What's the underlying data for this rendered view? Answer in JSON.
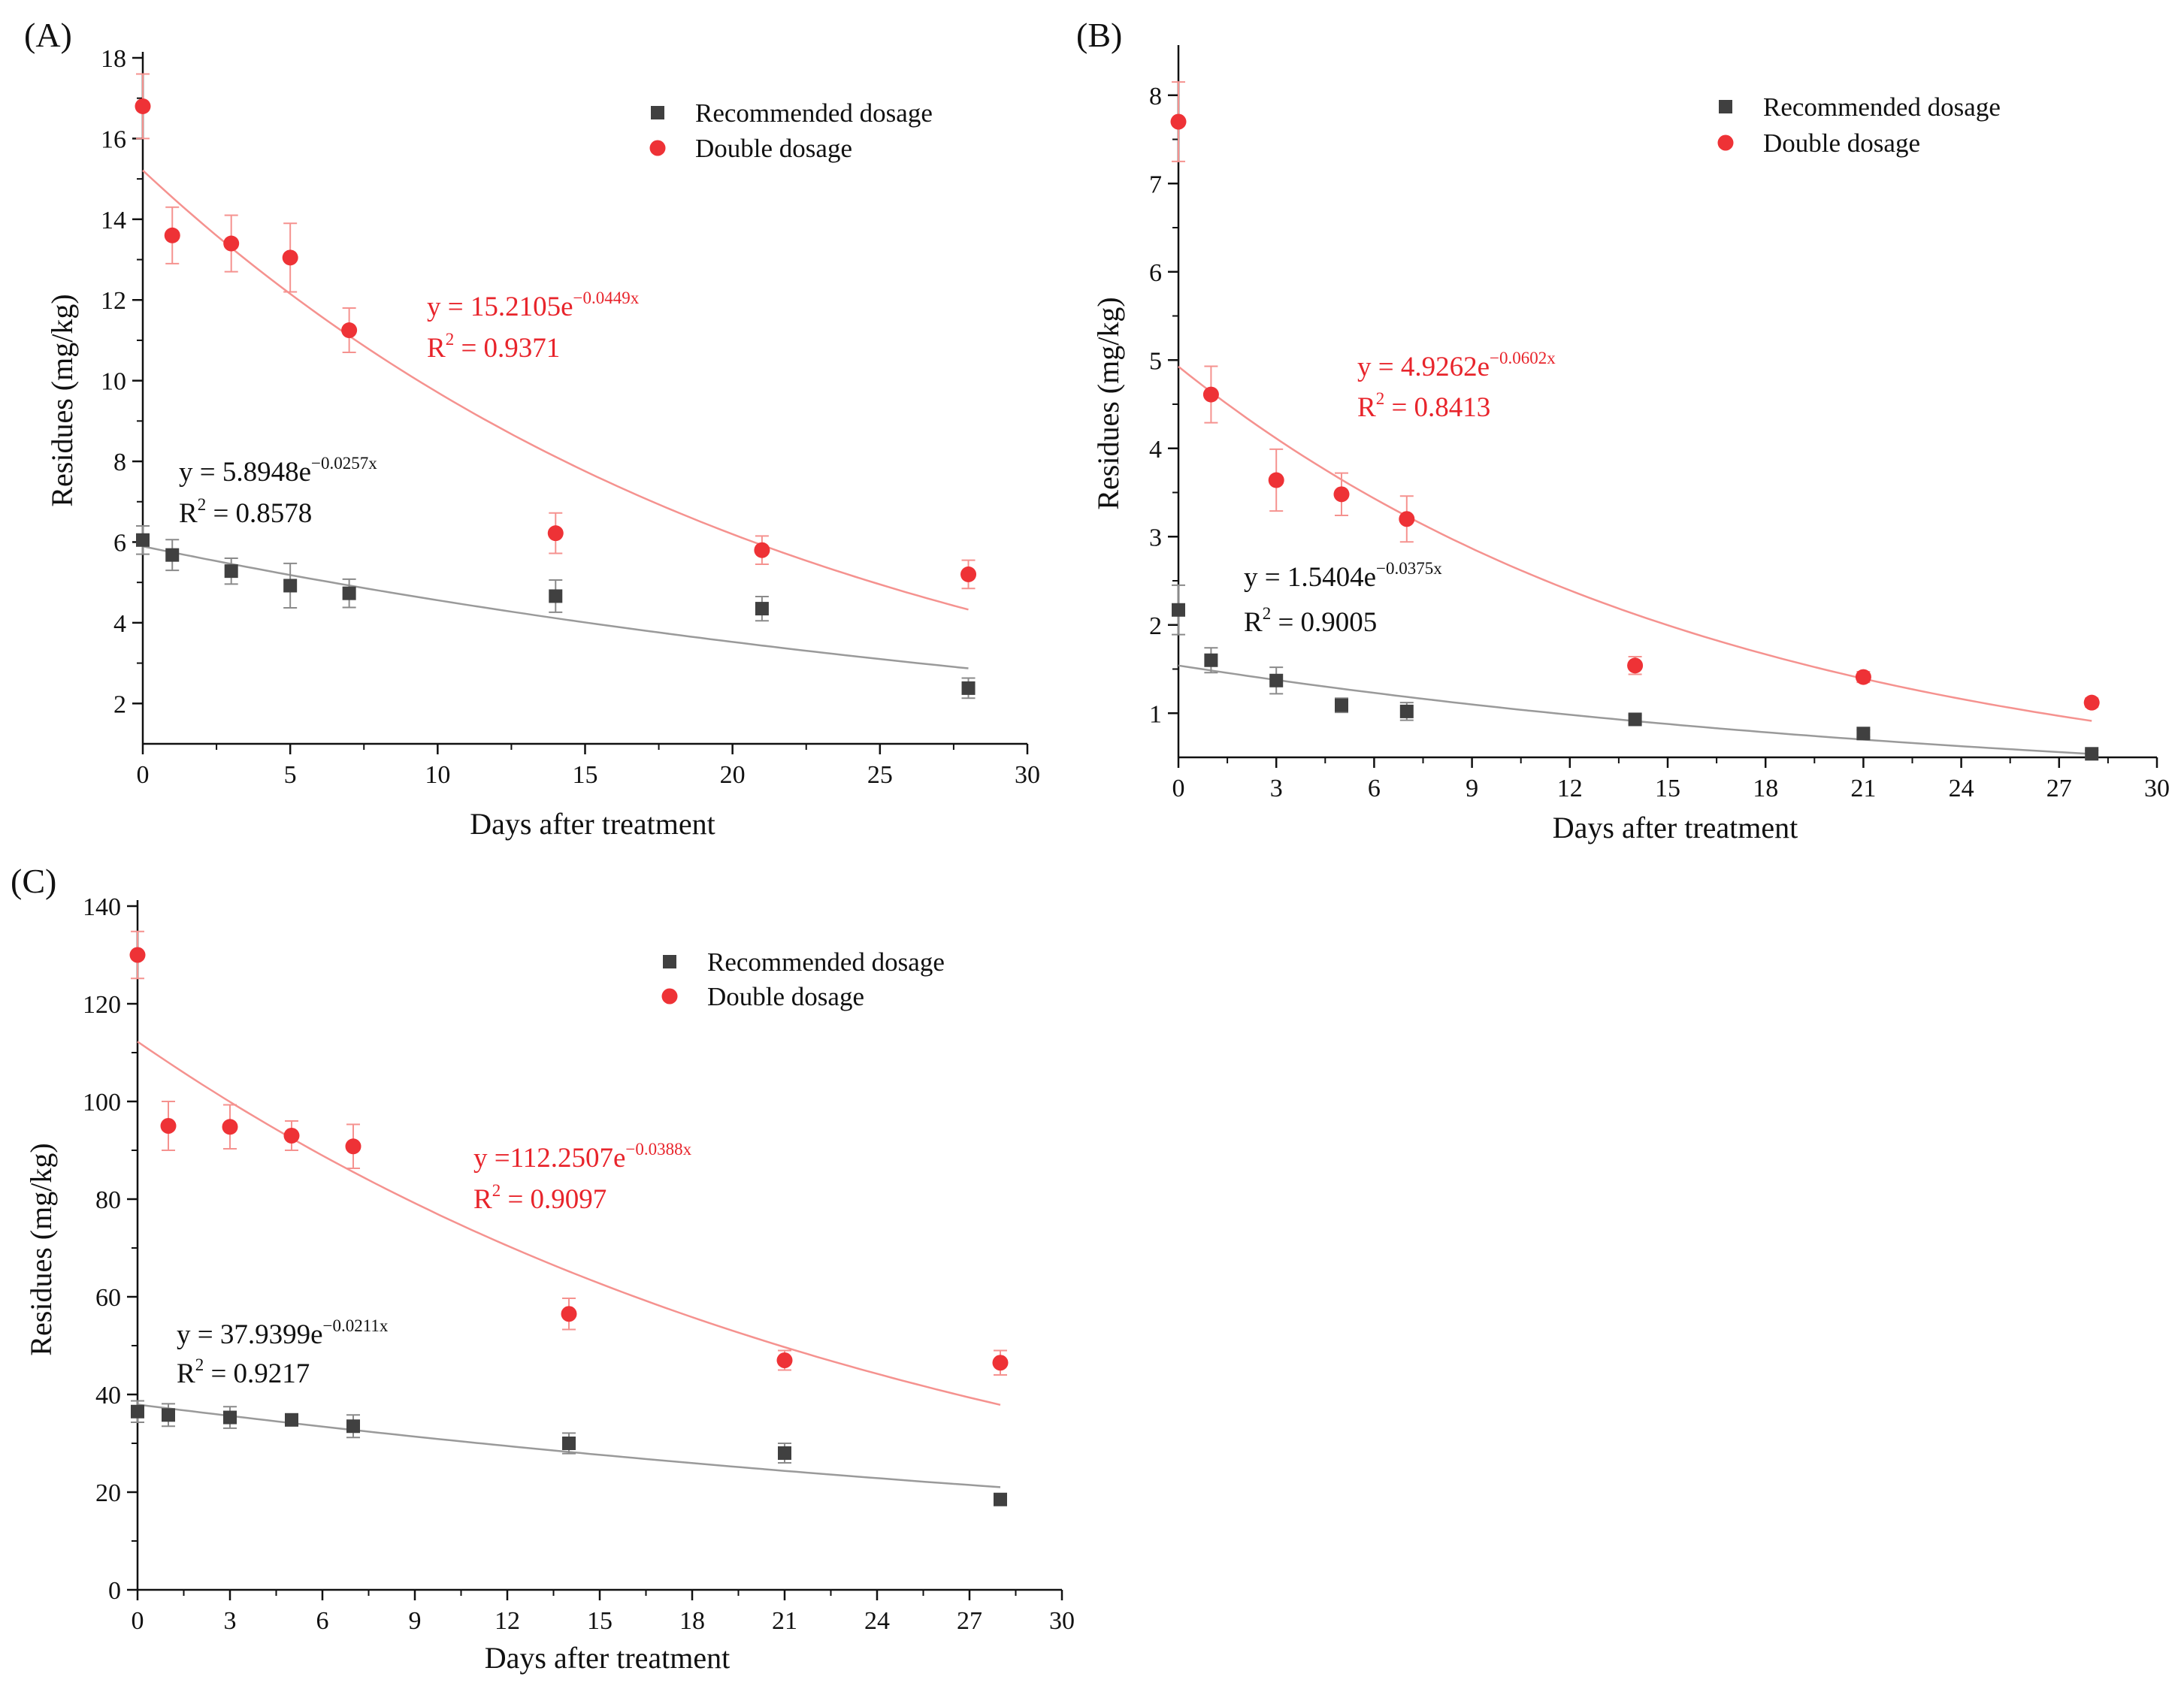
{
  "colors": {
    "rec_marker": "#404040",
    "rec_line": "#9a9a9a",
    "double_marker": "#ee3236",
    "double_line": "#f5928f",
    "double_text": "#e8242b",
    "rec_text": "#111111",
    "axis": "#111111"
  },
  "chart_data": [
    {
      "type": "scatter",
      "panel_label": "(A)",
      "xlabel": "Days after treatment",
      "ylabel": "Residues (mg/kg)",
      "xlim": [
        0,
        30
      ],
      "ylim": [
        1,
        18
      ],
      "xticks": [
        0,
        5,
        10,
        15,
        20,
        25,
        30
      ],
      "yticks": [
        2,
        4,
        6,
        8,
        10,
        12,
        14,
        16,
        18
      ],
      "legend_position": "top-right",
      "legend": [
        "Recommended dosage",
        "Double dosage"
      ],
      "series": [
        {
          "name": "Recommended dosage",
          "marker": "square",
          "x": [
            0,
            1,
            3,
            5,
            7,
            14,
            21,
            28
          ],
          "y": [
            6.05,
            5.68,
            5.28,
            4.92,
            4.73,
            4.66,
            4.35,
            2.38
          ],
          "err": [
            0.35,
            0.38,
            0.32,
            0.55,
            0.35,
            0.4,
            0.3,
            0.25
          ],
          "fit": {
            "a": 5.8948,
            "k": -0.0257,
            "x_range": [
              0,
              28
            ]
          },
          "equation": {
            "y_prefix": "y = 5.8948e",
            "exponent": "−0.0257x",
            "r2_prefix": "R",
            "r2_sup": "2",
            "r2_value": " = 0.8578"
          }
        },
        {
          "name": "Double dosage",
          "marker": "circle",
          "x": [
            0,
            1,
            3,
            5,
            7,
            14,
            21,
            28
          ],
          "y": [
            16.8,
            13.6,
            13.4,
            13.05,
            11.25,
            6.22,
            5.8,
            5.2
          ],
          "err": [
            0.8,
            0.7,
            0.7,
            0.85,
            0.55,
            0.5,
            0.35,
            0.35
          ],
          "fit": {
            "a": 15.2105,
            "k": -0.0449,
            "x_range": [
              0,
              28
            ]
          },
          "equation": {
            "y_prefix": "y = 15.2105e",
            "exponent": "−0.0449x",
            "r2_prefix": "R",
            "r2_sup": "2",
            "r2_value": " = 0.9371"
          }
        }
      ]
    },
    {
      "type": "scatter",
      "panel_label": "(B)",
      "xlabel": "Days after treatment",
      "ylabel": "Residues (mg/kg)",
      "xlim": [
        0,
        30
      ],
      "ylim": [
        0.5,
        8.5
      ],
      "xticks": [
        0,
        3,
        6,
        9,
        12,
        15,
        18,
        21,
        24,
        27,
        30
      ],
      "yticks": [
        1,
        2,
        3,
        4,
        5,
        6,
        7,
        8
      ],
      "legend_position": "top-right",
      "legend": [
        "Recommended dosage",
        "Double dosage"
      ],
      "series": [
        {
          "name": "Recommended dosage",
          "marker": "square",
          "x": [
            0,
            1,
            3,
            5,
            7,
            14,
            21,
            28
          ],
          "y": [
            2.17,
            1.6,
            1.37,
            1.09,
            1.02,
            0.93,
            0.77,
            0.54
          ],
          "err": [
            0.28,
            0.14,
            0.15,
            0.08,
            0.1,
            0.05,
            0.04,
            0.04
          ],
          "fit": {
            "a": 1.5404,
            "k": -0.0375,
            "x_range": [
              0,
              28
            ]
          },
          "equation": {
            "y_prefix": "y = 1.5404e",
            "exponent": "−0.0375x",
            "r2_prefix": "R",
            "r2_sup": "2",
            "r2_value": " = 0.9005"
          }
        },
        {
          "name": "Double dosage",
          "marker": "circle",
          "x": [
            0,
            1,
            3,
            5,
            7,
            14,
            21,
            28
          ],
          "y": [
            7.7,
            4.61,
            3.64,
            3.48,
            3.2,
            1.54,
            1.41,
            1.12
          ],
          "err": [
            0.45,
            0.32,
            0.35,
            0.24,
            0.26,
            0.1,
            0.06,
            0.05
          ],
          "fit": {
            "a": 4.9262,
            "k": -0.0602,
            "x_range": [
              0,
              28
            ]
          },
          "equation": {
            "y_prefix": "y = 4.9262e",
            "exponent": "−0.0602x",
            "r2_prefix": "R",
            "r2_sup": "2",
            "r2_value": " = 0.8413"
          }
        }
      ]
    },
    {
      "type": "scatter",
      "panel_label": "(C)",
      "xlabel": "Days after treatment",
      "ylabel": "Residues (mg/kg)",
      "xlim": [
        0,
        30
      ],
      "ylim": [
        0,
        140
      ],
      "xticks": [
        0,
        3,
        6,
        9,
        12,
        15,
        18,
        21,
        24,
        27,
        30
      ],
      "yticks": [
        0,
        20,
        40,
        60,
        80,
        100,
        120,
        140
      ],
      "legend_position": "top-right",
      "legend": [
        "Recommended dosage",
        "Double dosage"
      ],
      "series": [
        {
          "name": "Recommended dosage",
          "marker": "square",
          "x": [
            0,
            1,
            3,
            5,
            7,
            14,
            21,
            28
          ],
          "y": [
            36.5,
            35.8,
            35.3,
            34.8,
            33.5,
            30.0,
            28.0,
            18.5
          ],
          "err": [
            2.2,
            2.3,
            2.2,
            1.2,
            2.3,
            2.1,
            2.0,
            1.0
          ],
          "fit": {
            "a": 37.9399,
            "k": -0.0211,
            "x_range": [
              0,
              28
            ]
          },
          "equation": {
            "y_prefix": "y = 37.9399e",
            "exponent": "−0.0211x",
            "r2_prefix": "R",
            "r2_sup": "2",
            "r2_value": " = 0.9217"
          }
        },
        {
          "name": "Double dosage",
          "marker": "circle",
          "x": [
            0,
            1,
            3,
            5,
            7,
            14,
            21,
            28
          ],
          "y": [
            130.0,
            95.0,
            94.8,
            93.0,
            90.8,
            56.5,
            47.0,
            46.5
          ],
          "err": [
            4.8,
            5.0,
            4.5,
            3.0,
            4.5,
            3.2,
            2.0,
            2.5
          ],
          "fit": {
            "a": 112.2507,
            "k": -0.0388,
            "x_range": [
              0,
              28
            ]
          },
          "equation": {
            "y_prefix": "y =112.2507e",
            "exponent": "−0.0388x",
            "r2_prefix": "R",
            "r2_sup": "2",
            "r2_value": " = 0.9097"
          }
        }
      ]
    }
  ]
}
